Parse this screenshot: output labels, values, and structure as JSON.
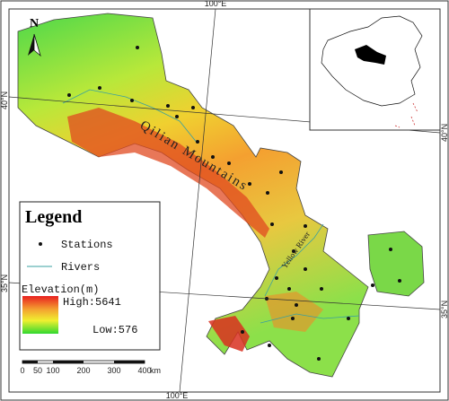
{
  "map": {
    "north_arrow": "N",
    "graticule": {
      "top_lon": "100°E",
      "bottom_lon": "100°E",
      "left_lat_north": "40°N",
      "right_lat_north": "40°N",
      "left_lat_south": "35°N",
      "right_lat_south": "35°N"
    },
    "labels": {
      "mountains": "Qilian Mountains",
      "river": "Yellow River"
    },
    "legend": {
      "title": "Legend",
      "stations": "Stations",
      "rivers": "Rivers",
      "elevation_title": "Elevation(m)",
      "high": "High:5641",
      "low": "Low:576"
    },
    "scale_bar": {
      "ticks": [
        "0",
        "50",
        "100",
        "200",
        "300",
        "400"
      ],
      "unit": "km"
    }
  }
}
